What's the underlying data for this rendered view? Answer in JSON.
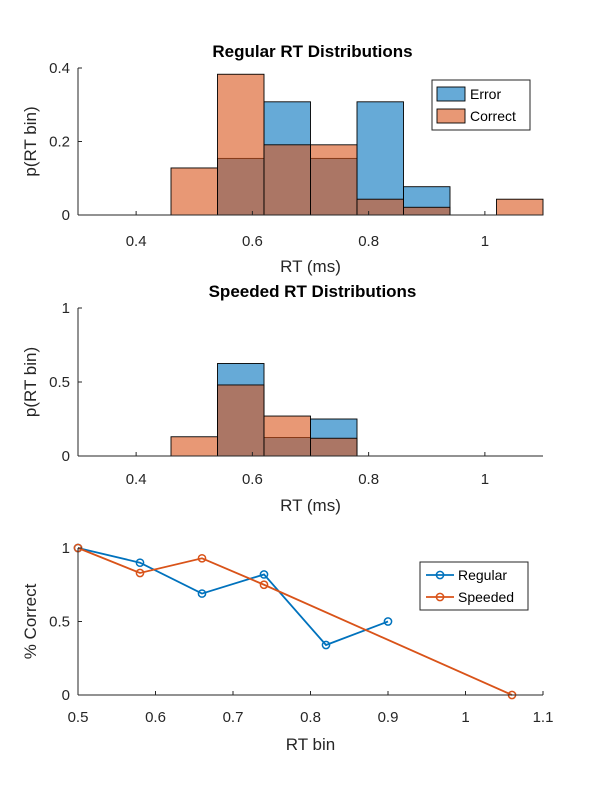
{
  "chart_data": [
    {
      "type": "bar",
      "subtype": "overlaid-histogram",
      "title": "Regular RT Distributions",
      "xlabel": "RT (ms)",
      "ylabel": "p(RT bin)",
      "xlim": [
        0.3,
        1.1
      ],
      "ylim": [
        0,
        0.4
      ],
      "xticks": [
        0.4,
        0.6,
        0.8,
        1
      ],
      "xtick_labels": [
        "0.4",
        "0.6",
        "0.8",
        "1"
      ],
      "yticks": [
        0,
        0.2,
        0.4
      ],
      "ytick_labels": [
        "0",
        "0.2",
        "0.4"
      ],
      "bin_edges": [
        0.46,
        0.54,
        0.62,
        0.7,
        0.78,
        0.86,
        0.94,
        1.02,
        1.1
      ],
      "legend_position": "top-right",
      "series": [
        {
          "name": "Error",
          "color": "#0072BD",
          "values": [
            0,
            0.154,
            0.308,
            0.154,
            0.308,
            0.077,
            0,
            0
          ]
        },
        {
          "name": "Correct",
          "color": "#D95319",
          "values": [
            0.128,
            0.383,
            0.191,
            0.191,
            0.043,
            0.021,
            0,
            0.043
          ]
        }
      ]
    },
    {
      "type": "bar",
      "subtype": "overlaid-histogram",
      "title": "Speeded RT Distributions",
      "xlabel": "RT (ms)",
      "ylabel": "p(RT bin)",
      "xlim": [
        0.3,
        1.1
      ],
      "ylim": [
        0,
        1
      ],
      "xticks": [
        0.4,
        0.6,
        0.8,
        1
      ],
      "xtick_labels": [
        "0.4",
        "0.6",
        "0.8",
        "1"
      ],
      "yticks": [
        0,
        0.5,
        1
      ],
      "ytick_labels": [
        "0",
        "0.5",
        "1"
      ],
      "bin_edges": [
        0.46,
        0.54,
        0.62,
        0.7,
        0.78
      ],
      "series": [
        {
          "name": "Error",
          "color": "#0072BD",
          "values": [
            0,
            0.625,
            0.125,
            0.25
          ]
        },
        {
          "name": "Correct",
          "color": "#D95319",
          "values": [
            0.13,
            0.48,
            0.27,
            0.12
          ]
        }
      ]
    },
    {
      "type": "line",
      "xlabel": "RT bin",
      "ylabel": "% Correct",
      "xlim": [
        0.5,
        1.1
      ],
      "ylim": [
        0,
        1
      ],
      "xticks": [
        0.5,
        0.6,
        0.7,
        0.8,
        0.9,
        1,
        1.1
      ],
      "xtick_labels": [
        "0.5",
        "0.6",
        "0.7",
        "0.8",
        "0.9",
        "1",
        "1.1"
      ],
      "yticks": [
        0,
        0.5,
        1
      ],
      "ytick_labels": [
        "0",
        "0.5",
        "1"
      ],
      "legend_position": "top-right",
      "series": [
        {
          "name": "Regular",
          "color": "#0072BD",
          "x": [
            0.5,
            0.58,
            0.66,
            0.74,
            0.82,
            0.9
          ],
          "y": [
            1,
            0.9,
            0.69,
            0.82,
            0.34,
            0.5
          ]
        },
        {
          "name": "Speeded",
          "color": "#D95319",
          "x": [
            0.5,
            0.58,
            0.66,
            0.74,
            1.06
          ],
          "y": [
            1,
            0.83,
            0.93,
            0.75,
            0
          ]
        }
      ]
    }
  ]
}
